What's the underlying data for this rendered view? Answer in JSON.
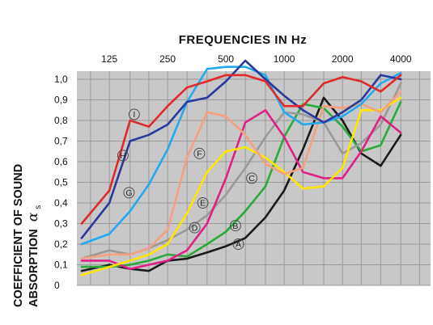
{
  "chart_data": {
    "type": "line",
    "title": "FREQUENCIES IN Hz",
    "ylabel_line1": "COEFFICIENT OF SOUND",
    "ylabel_line2": "ABSORPTION",
    "ylabel_symbol": "α",
    "ylabel_subscript": "s",
    "x_ticks": [
      "125",
      "250",
      "500",
      "1000",
      "2000",
      "4000"
    ],
    "x_tick_values": [
      125,
      250,
      500,
      1000,
      2000,
      4000
    ],
    "x_scale": "log",
    "xlim": [
      85,
      5700
    ],
    "y_ticks": [
      "0",
      "0,1",
      "0,2",
      "0,3",
      "0,4",
      "0,5",
      "0,6",
      "0,7",
      "0,8",
      "0,9",
      "1,0"
    ],
    "ylim": [
      0,
      1.0
    ],
    "grid": true,
    "background_color": "#c8c8c8",
    "grid_color": "#9a9a9a",
    "series": [
      {
        "name": "A",
        "color": "#1a1a1a",
        "label_at": [
          580,
          0.2
        ],
        "x": [
          90,
          125,
          160,
          200,
          250,
          315,
          400,
          500,
          630,
          800,
          1000,
          1250,
          1600,
          2000,
          2500,
          3150,
          4000
        ],
        "y": [
          0.07,
          0.1,
          0.08,
          0.07,
          0.12,
          0.13,
          0.16,
          0.19,
          0.23,
          0.33,
          0.46,
          0.66,
          0.91,
          0.8,
          0.64,
          0.58,
          0.73
        ]
      },
      {
        "name": "B",
        "color": "#2aaa3a",
        "label_at": [
          560,
          0.29
        ],
        "x": [
          90,
          125,
          160,
          200,
          250,
          315,
          400,
          500,
          630,
          800,
          1000,
          1250,
          1600,
          2000,
          2500,
          3150,
          4000
        ],
        "y": [
          0.09,
          0.09,
          0.1,
          0.12,
          0.15,
          0.14,
          0.2,
          0.26,
          0.36,
          0.48,
          0.72,
          0.88,
          0.86,
          0.77,
          0.65,
          0.68,
          0.89
        ]
      },
      {
        "name": "C",
        "color": "#9a9a9a",
        "label_at": [
          680,
          0.52
        ],
        "x": [
          90,
          125,
          160,
          200,
          250,
          315,
          400,
          500,
          630,
          800,
          1000,
          1250,
          1600,
          2000,
          2500,
          3150,
          4000
        ],
        "y": [
          0.13,
          0.17,
          0.15,
          0.18,
          0.22,
          0.27,
          0.34,
          0.44,
          0.57,
          0.72,
          0.84,
          0.83,
          0.79,
          0.64,
          0.69,
          0.78,
          0.98
        ]
      },
      {
        "name": "D",
        "color": "#e02085",
        "label_at": [
          345,
          0.28
        ],
        "x": [
          90,
          125,
          160,
          200,
          250,
          315,
          400,
          500,
          630,
          800,
          1000,
          1250,
          1600,
          2000,
          2500,
          3150,
          4000
        ],
        "y": [
          0.12,
          0.12,
          0.08,
          0.1,
          0.12,
          0.17,
          0.3,
          0.52,
          0.79,
          0.85,
          0.72,
          0.55,
          0.52,
          0.52,
          0.65,
          0.82,
          0.74
        ]
      },
      {
        "name": "E",
        "color": "#ffe600",
        "label_at": [
          380,
          0.4
        ],
        "x": [
          90,
          125,
          160,
          200,
          250,
          315,
          400,
          500,
          630,
          800,
          1000,
          1250,
          1600,
          2000,
          2500,
          3150,
          4000
        ],
        "y": [
          0.05,
          0.09,
          0.12,
          0.15,
          0.2,
          0.35,
          0.55,
          0.65,
          0.67,
          0.62,
          0.55,
          0.47,
          0.48,
          0.57,
          0.85,
          0.85,
          0.91
        ]
      },
      {
        "name": "F",
        "color": "#f5a080",
        "label_at": [
          365,
          0.64
        ],
        "x": [
          90,
          125,
          160,
          200,
          250,
          315,
          400,
          500,
          630,
          800,
          1000,
          1250,
          1600,
          2000,
          2500,
          3150,
          4000
        ],
        "y": [
          0.13,
          0.15,
          0.15,
          0.18,
          0.27,
          0.62,
          0.84,
          0.82,
          0.73,
          0.59,
          0.54,
          0.57,
          0.87,
          0.86,
          0.88,
          0.84,
          0.94
        ]
      },
      {
        "name": "G",
        "color": "#22aaee",
        "label_at": [
          158,
          0.45
        ],
        "x": [
          90,
          125,
          160,
          200,
          250,
          315,
          400,
          500,
          630,
          800,
          1000,
          1250,
          1600,
          2000,
          2500,
          3150,
          4000
        ],
        "y": [
          0.2,
          0.25,
          0.36,
          0.49,
          0.66,
          0.89,
          1.05,
          1.06,
          1.06,
          1.02,
          0.84,
          0.78,
          0.79,
          0.82,
          0.88,
          0.98,
          1.03
        ]
      },
      {
        "name": "H",
        "color": "#2a3a9a",
        "label_at": [
          147,
          0.63
        ],
        "x": [
          90,
          125,
          160,
          200,
          250,
          315,
          400,
          500,
          630,
          800,
          1000,
          1250,
          1600,
          2000,
          2500,
          3150,
          4000
        ],
        "y": [
          0.23,
          0.4,
          0.7,
          0.73,
          0.78,
          0.89,
          0.91,
          0.99,
          1.09,
          1.0,
          0.92,
          0.85,
          0.79,
          0.84,
          0.9,
          1.02,
          1.0
        ]
      },
      {
        "name": "I",
        "color": "#e02a2a",
        "label_at": [
          168,
          0.83
        ],
        "x": [
          90,
          125,
          160,
          200,
          250,
          315,
          400,
          500,
          630,
          800,
          1000,
          1250,
          1600,
          2000,
          2500,
          3150,
          4000
        ],
        "y": [
          0.3,
          0.46,
          0.8,
          0.77,
          0.87,
          0.96,
          0.99,
          1.02,
          1.02,
          0.99,
          0.87,
          0.87,
          0.98,
          1.01,
          0.99,
          0.94,
          1.02
        ]
      }
    ]
  }
}
